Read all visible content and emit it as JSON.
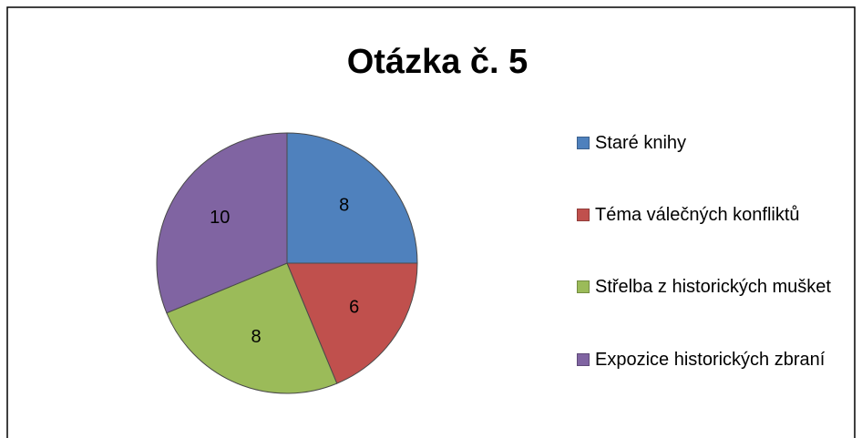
{
  "chart_data": {
    "type": "pie",
    "title": "Otázka č. 5",
    "categories": [
      "Staré knihy",
      "Téma válečných konfliktů",
      "Střelba z historických mušket",
      "Expozice historických zbraní"
    ],
    "values": [
      8,
      6,
      8,
      10
    ],
    "colors": [
      "#4f81bd",
      "#c0504d",
      "#9bbb59",
      "#8064a2"
    ],
    "legend": "right"
  }
}
